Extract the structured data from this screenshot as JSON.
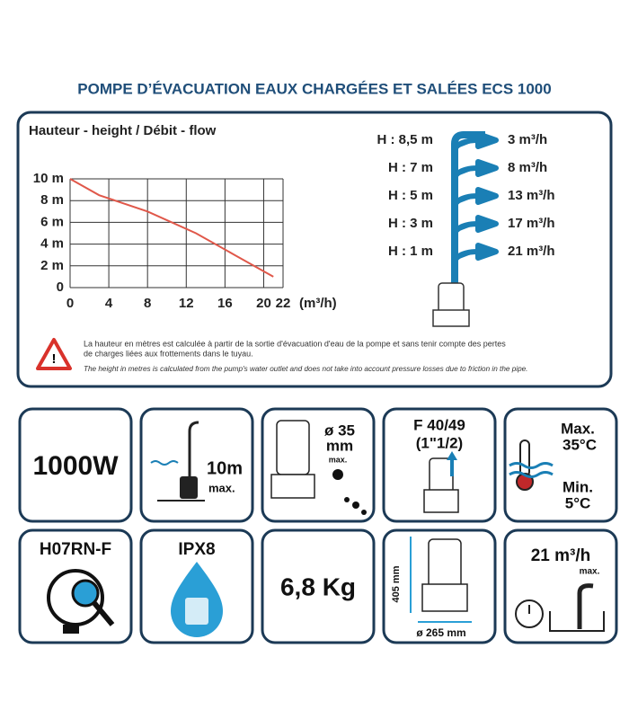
{
  "title": "POMPE D’ÉVACUATION EAUX CHARGÉES ET SALÉES ECS 1000",
  "chart_data": {
    "type": "line",
    "title": "Hauteur - height / Débit - flow",
    "x": [
      0,
      3,
      8,
      13,
      17,
      21
    ],
    "y": [
      10,
      8.5,
      7,
      5,
      3,
      1
    ],
    "color": "#e0584a",
    "xlim": [
      0,
      22
    ],
    "ylim": [
      0,
      10
    ],
    "xticks": [
      0,
      4,
      8,
      12,
      16,
      20,
      22
    ],
    "yticks": [
      0,
      {
        "value": 2,
        "label": "2 m"
      },
      {
        "value": 4,
        "label": "4 m"
      },
      {
        "value": 6,
        "label": "6 m"
      },
      {
        "value": 8,
        "label": "8 m"
      },
      {
        "value": 10,
        "label": "10 m"
      }
    ],
    "x_label": "(m³/h)",
    "grid": true
  },
  "flow_table": [
    {
      "height": "H : 8,5 m",
      "flow": "3 m³/h"
    },
    {
      "height": "H : 7 m",
      "flow": "8 m³/h"
    },
    {
      "height": "H : 5 m",
      "flow": "13 m³/h"
    },
    {
      "height": "H : 3 m",
      "flow": "17 m³/h"
    },
    {
      "height": "H : 1 m",
      "flow": "21 m³/h"
    }
  ],
  "warning": {
    "fr": [
      "La hauteur en mètres est calculée à partir de la sortie d'évacuation d'eau de la pompe et sans tenir compte des pertes",
      "de charges liées aux frottements dans le tuyau."
    ],
    "en": "The height in metres is calculated from the pump's water outlet and does not take into account pressure losses due to friction in the pipe."
  },
  "specs": {
    "power": "1000W",
    "depth": [
      "10m",
      "max."
    ],
    "particles": [
      "ø 35",
      "mm",
      "max."
    ],
    "outlet": [
      "F 40/49",
      "(1\"1/2)"
    ],
    "temperature": [
      "Max.",
      "35°C",
      "Min.",
      "5°C"
    ],
    "cable": "H07RN-F",
    "protection": "IPX8",
    "weight": "6,8 Kg",
    "dimensions": [
      "405 mm",
      "ø 265 mm"
    ],
    "max_flow": [
      "21 m³/h",
      "max."
    ]
  }
}
